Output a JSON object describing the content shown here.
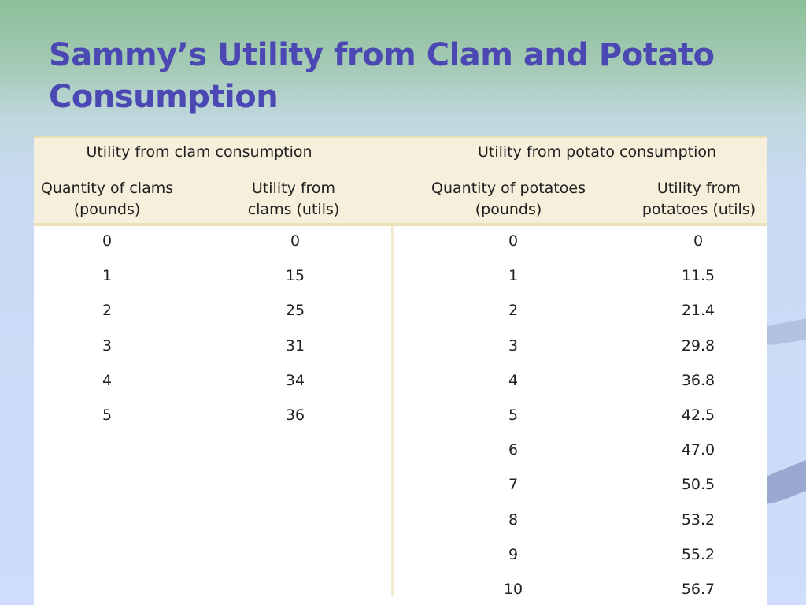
{
  "slide": {
    "title": "Sammy’s Utility from Clam and Potato Consumption"
  },
  "table": {
    "groups": {
      "clam": "Utility from clam consumption",
      "potato": "Utility from potato consumption"
    },
    "headers": {
      "clam_qty": "Quantity of clams (pounds)",
      "clam_util": "Utility from clams (utils)",
      "potato_qty": "Quantity of potatoes (pounds)",
      "potato_util": "Utility from potatoes (utils)"
    },
    "clam_rows": [
      [
        "0",
        "0"
      ],
      [
        "1",
        "15"
      ],
      [
        "2",
        "25"
      ],
      [
        "3",
        "31"
      ],
      [
        "4",
        "34"
      ],
      [
        "5",
        "36"
      ]
    ],
    "potato_rows": [
      [
        "0",
        "0"
      ],
      [
        "1",
        "11.5"
      ],
      [
        "2",
        "21.4"
      ],
      [
        "3",
        "29.8"
      ],
      [
        "4",
        "36.8"
      ],
      [
        "5",
        "42.5"
      ],
      [
        "6",
        "47.0"
      ],
      [
        "7",
        "50.5"
      ],
      [
        "8",
        "53.2"
      ],
      [
        "9",
        "55.2"
      ],
      [
        "10",
        "56.7"
      ]
    ]
  }
}
